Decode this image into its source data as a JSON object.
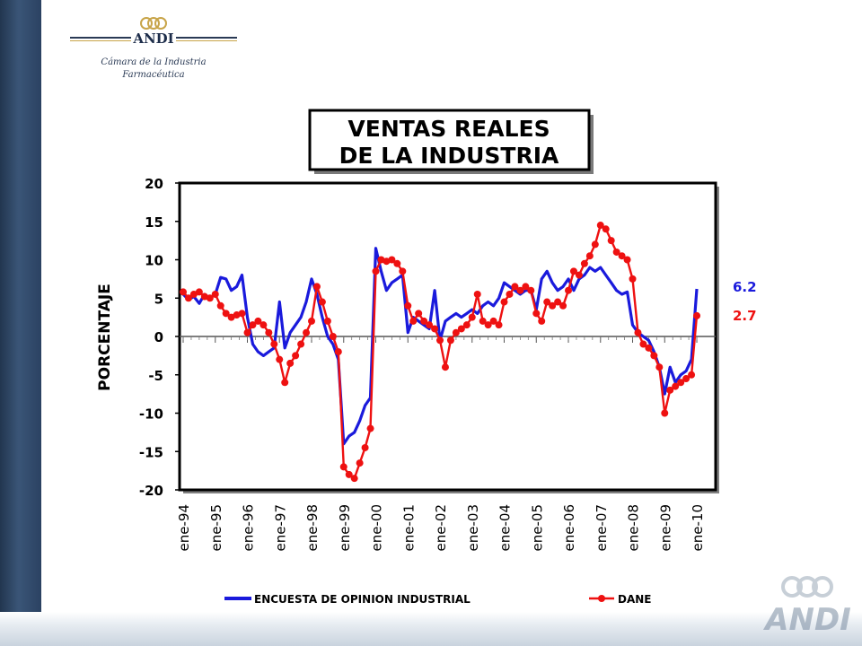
{
  "branding": {
    "logo_text": "ANDI",
    "subtitle_line1": "Cámara de la Industria",
    "subtitle_line2": "Farmacéutica"
  },
  "colors": {
    "encuesta": "#1a1adc",
    "dane": "#ee1111",
    "frame": "#000000"
  },
  "chart_data": {
    "type": "line",
    "title": [
      "VENTAS REALES",
      "DE LA INDUSTRIA"
    ],
    "ylabel": "PORCENTAJE",
    "xlabel": "",
    "ylim": [
      -20,
      20
    ],
    "yticks": [
      "20",
      "15",
      "10",
      "5",
      "0",
      "-5",
      "-10",
      "-15",
      "-20"
    ],
    "xticks": [
      "ene-94",
      "ene-95",
      "ene-96",
      "ene-97",
      "ene-98",
      "ene-99",
      "ene-00",
      "ene-01",
      "ene-02",
      "ene-03",
      "ene-04",
      "ene-05",
      "ene-06",
      "ene-07",
      "ene-08",
      "ene-09",
      "ene-10"
    ],
    "grid": false,
    "legend": "bottom",
    "end_labels": [
      {
        "series": "ENCUESTA DE OPINION INDUSTRIAL",
        "text": "6.2",
        "value": 6.2
      },
      {
        "series": "DANE",
        "text": "2.7",
        "value": 2.7
      }
    ],
    "series": [
      {
        "name": "ENCUESTA DE OPINION INDUSTRIAL",
        "color": "#1a1adc",
        "marker": "none",
        "points": [
          [
            "ene-94",
            5.5
          ],
          [
            "mar-94",
            4.8
          ],
          [
            "may-94",
            5.2
          ],
          [
            "jul-94",
            4.3
          ],
          [
            "sep-94",
            5.5
          ],
          [
            "nov-94",
            5.0
          ],
          [
            "ene-95",
            5.5
          ],
          [
            "mar-95",
            7.7
          ],
          [
            "may-95",
            7.5
          ],
          [
            "jul-95",
            6.0
          ],
          [
            "sep-95",
            6.5
          ],
          [
            "nov-95",
            8.0
          ],
          [
            "ene-96",
            2.5
          ],
          [
            "mar-96",
            -1.0
          ],
          [
            "may-96",
            -2.0
          ],
          [
            "jul-96",
            -2.5
          ],
          [
            "sep-96",
            -2.0
          ],
          [
            "nov-96",
            -1.5
          ],
          [
            "ene-97",
            4.5
          ],
          [
            "mar-97",
            -1.5
          ],
          [
            "may-97",
            0.5
          ],
          [
            "jul-97",
            1.5
          ],
          [
            "sep-97",
            2.5
          ],
          [
            "nov-97",
            4.5
          ],
          [
            "ene-98",
            7.5
          ],
          [
            "mar-98",
            5.5
          ],
          [
            "may-98",
            2.5
          ],
          [
            "jul-98",
            0.0
          ],
          [
            "sep-98",
            -1.0
          ],
          [
            "nov-98",
            -3.0
          ],
          [
            "ene-99",
            -14.0
          ],
          [
            "mar-99",
            -13.0
          ],
          [
            "may-99",
            -12.5
          ],
          [
            "jul-99",
            -11.0
          ],
          [
            "sep-99",
            -9.0
          ],
          [
            "nov-99",
            -8.0
          ],
          [
            "ene-00",
            11.5
          ],
          [
            "mar-00",
            8.5
          ],
          [
            "may-00",
            6.0
          ],
          [
            "jul-00",
            7.0
          ],
          [
            "sep-00",
            7.5
          ],
          [
            "nov-00",
            8.0
          ],
          [
            "ene-01",
            0.5
          ],
          [
            "mar-01",
            2.5
          ],
          [
            "may-01",
            2.0
          ],
          [
            "jul-01",
            1.5
          ],
          [
            "sep-01",
            1.0
          ],
          [
            "nov-01",
            6.0
          ],
          [
            "ene-02",
            -0.5
          ],
          [
            "mar-02",
            2.0
          ],
          [
            "may-02",
            2.5
          ],
          [
            "jul-02",
            3.0
          ],
          [
            "sep-02",
            2.5
          ],
          [
            "nov-02",
            3.0
          ],
          [
            "ene-03",
            3.5
          ],
          [
            "mar-03",
            3.0
          ],
          [
            "may-03",
            4.0
          ],
          [
            "jul-03",
            4.5
          ],
          [
            "sep-03",
            4.0
          ],
          [
            "nov-03",
            5.0
          ],
          [
            "ene-04",
            7.0
          ],
          [
            "mar-04",
            6.5
          ],
          [
            "may-04",
            6.0
          ],
          [
            "jul-04",
            5.5
          ],
          [
            "sep-04",
            6.0
          ],
          [
            "nov-04",
            6.0
          ],
          [
            "ene-05",
            3.5
          ],
          [
            "mar-05",
            7.5
          ],
          [
            "may-05",
            8.5
          ],
          [
            "jul-05",
            7.0
          ],
          [
            "sep-05",
            6.0
          ],
          [
            "nov-05",
            6.5
          ],
          [
            "ene-06",
            7.5
          ],
          [
            "mar-06",
            6.0
          ],
          [
            "may-06",
            7.5
          ],
          [
            "jul-06",
            8.0
          ],
          [
            "sep-06",
            9.0
          ],
          [
            "nov-06",
            8.5
          ],
          [
            "ene-07",
            9.0
          ],
          [
            "mar-07",
            8.0
          ],
          [
            "may-07",
            7.0
          ],
          [
            "jul-07",
            6.0
          ],
          [
            "sep-07",
            5.5
          ],
          [
            "nov-07",
            5.8
          ],
          [
            "ene-08",
            1.5
          ],
          [
            "mar-08",
            0.5
          ],
          [
            "may-08",
            0.0
          ],
          [
            "jul-08",
            -0.5
          ],
          [
            "sep-08",
            -2.0
          ],
          [
            "nov-08",
            -4.0
          ],
          [
            "ene-09",
            -7.5
          ],
          [
            "mar-09",
            -4.0
          ],
          [
            "may-09",
            -6.0
          ],
          [
            "jul-09",
            -5.0
          ],
          [
            "sep-09",
            -4.5
          ],
          [
            "nov-09",
            -3.0
          ],
          [
            "ene-10",
            6.2
          ]
        ]
      },
      {
        "name": "DANE",
        "color": "#ee1111",
        "marker": "circle",
        "points": [
          [
            "ene-94",
            5.8
          ],
          [
            "mar-94",
            5.0
          ],
          [
            "may-94",
            5.5
          ],
          [
            "jul-94",
            5.8
          ],
          [
            "sep-94",
            5.2
          ],
          [
            "nov-94",
            5.0
          ],
          [
            "ene-95",
            5.5
          ],
          [
            "mar-95",
            4.0
          ],
          [
            "may-95",
            3.0
          ],
          [
            "jul-95",
            2.5
          ],
          [
            "sep-95",
            2.8
          ],
          [
            "nov-95",
            3.0
          ],
          [
            "ene-96",
            0.5
          ],
          [
            "mar-96",
            1.5
          ],
          [
            "may-96",
            2.0
          ],
          [
            "jul-96",
            1.5
          ],
          [
            "sep-96",
            0.5
          ],
          [
            "nov-96",
            -1.0
          ],
          [
            "ene-97",
            -3.0
          ],
          [
            "mar-97",
            -6.0
          ],
          [
            "may-97",
            -3.5
          ],
          [
            "jul-97",
            -2.5
          ],
          [
            "sep-97",
            -1.0
          ],
          [
            "nov-97",
            0.5
          ],
          [
            "ene-98",
            2.0
          ],
          [
            "mar-98",
            6.5
          ],
          [
            "may-98",
            4.5
          ],
          [
            "jul-98",
            2.0
          ],
          [
            "sep-98",
            0.0
          ],
          [
            "nov-98",
            -2.0
          ],
          [
            "ene-99",
            -17.0
          ],
          [
            "mar-99",
            -18.0
          ],
          [
            "may-99",
            -18.5
          ],
          [
            "jul-99",
            -16.5
          ],
          [
            "sep-99",
            -14.5
          ],
          [
            "nov-99",
            -12.0
          ],
          [
            "ene-00",
            8.5
          ],
          [
            "mar-00",
            10.0
          ],
          [
            "may-00",
            9.8
          ],
          [
            "jul-00",
            10.0
          ],
          [
            "sep-00",
            9.5
          ],
          [
            "nov-00",
            8.5
          ],
          [
            "ene-01",
            4.0
          ],
          [
            "mar-01",
            2.0
          ],
          [
            "may-01",
            3.0
          ],
          [
            "jul-01",
            2.0
          ],
          [
            "sep-01",
            1.5
          ],
          [
            "nov-01",
            1.0
          ],
          [
            "ene-02",
            -0.5
          ],
          [
            "mar-02",
            -4.0
          ],
          [
            "may-02",
            -0.5
          ],
          [
            "jul-02",
            0.5
          ],
          [
            "sep-02",
            1.0
          ],
          [
            "nov-02",
            1.5
          ],
          [
            "ene-03",
            2.5
          ],
          [
            "mar-03",
            5.5
          ],
          [
            "may-03",
            2.0
          ],
          [
            "jul-03",
            1.5
          ],
          [
            "sep-03",
            2.0
          ],
          [
            "nov-03",
            1.5
          ],
          [
            "ene-04",
            4.5
          ],
          [
            "mar-04",
            5.5
          ],
          [
            "may-04",
            6.5
          ],
          [
            "jul-04",
            6.0
          ],
          [
            "sep-04",
            6.5
          ],
          [
            "nov-04",
            6.0
          ],
          [
            "ene-05",
            3.0
          ],
          [
            "mar-05",
            2.0
          ],
          [
            "may-05",
            4.5
          ],
          [
            "jul-05",
            4.0
          ],
          [
            "sep-05",
            4.5
          ],
          [
            "nov-05",
            4.0
          ],
          [
            "ene-06",
            6.0
          ],
          [
            "mar-06",
            8.5
          ],
          [
            "may-06",
            8.0
          ],
          [
            "jul-06",
            9.5
          ],
          [
            "sep-06",
            10.5
          ],
          [
            "nov-06",
            12.0
          ],
          [
            "ene-07",
            14.5
          ],
          [
            "mar-07",
            14.0
          ],
          [
            "may-07",
            12.5
          ],
          [
            "jul-07",
            11.0
          ],
          [
            "sep-07",
            10.5
          ],
          [
            "nov-07",
            10.0
          ],
          [
            "ene-08",
            7.5
          ],
          [
            "mar-08",
            0.5
          ],
          [
            "may-08",
            -1.0
          ],
          [
            "jul-08",
            -1.5
          ],
          [
            "sep-08",
            -2.5
          ],
          [
            "nov-08",
            -4.0
          ],
          [
            "ene-09",
            -10.0
          ],
          [
            "mar-09",
            -7.0
          ],
          [
            "may-09",
            -6.5
          ],
          [
            "jul-09",
            -6.0
          ],
          [
            "sep-09",
            -5.5
          ],
          [
            "nov-09",
            -5.0
          ],
          [
            "ene-10",
            2.7
          ]
        ]
      }
    ]
  }
}
